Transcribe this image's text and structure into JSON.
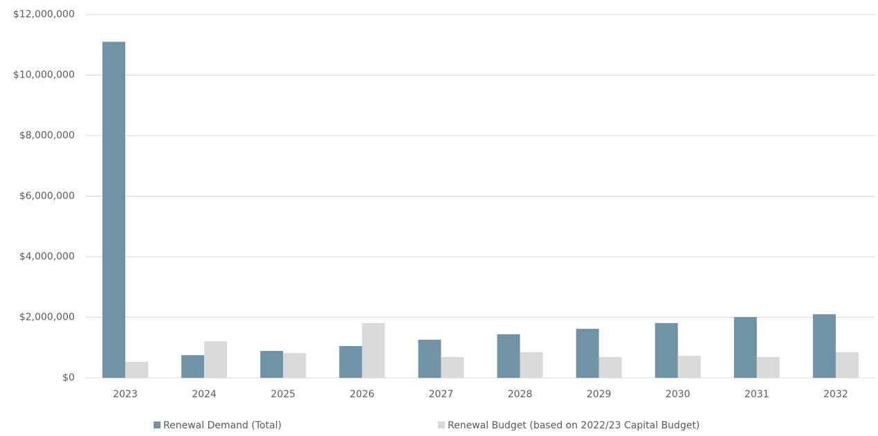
{
  "chart_data": {
    "type": "bar",
    "categories": [
      "2023",
      "2024",
      "2025",
      "2026",
      "2027",
      "2028",
      "2029",
      "2030",
      "2031",
      "2032"
    ],
    "series": [
      {
        "name": "Renewal Demand (Total)",
        "color": "#7093a5",
        "values": [
          11100000,
          750000,
          890000,
          1050000,
          1260000,
          1440000,
          1620000,
          1810000,
          2010000,
          2100000
        ]
      },
      {
        "name": "Renewal Budget (based on 2022/23 Capital Budget)",
        "color": "#d9d9d9",
        "values": [
          530000,
          1210000,
          820000,
          1810000,
          690000,
          850000,
          690000,
          730000,
          690000,
          850000
        ]
      }
    ],
    "ylim": [
      0,
      12000000
    ],
    "yticks": [
      {
        "value": 0,
        "label": "$0"
      },
      {
        "value": 2000000,
        "label": "$2,000,000"
      },
      {
        "value": 4000000,
        "label": "$4,000,000"
      },
      {
        "value": 6000000,
        "label": "$6,000,000"
      },
      {
        "value": 8000000,
        "label": "$8,000,000"
      },
      {
        "value": 10000000,
        "label": "$10,000,000"
      },
      {
        "value": 12000000,
        "label": "$12,000,000"
      }
    ],
    "grid": true,
    "legend": "bottom"
  }
}
